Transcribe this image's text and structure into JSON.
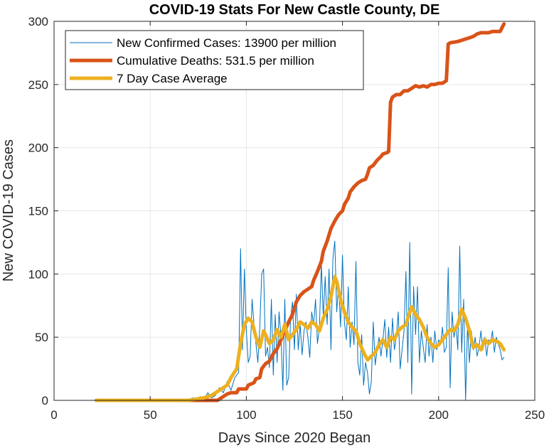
{
  "chart_data": {
    "type": "line",
    "title": "COVID-19 Stats For New Castle County, DE",
    "xlabel": "Days Since 2020 Began",
    "ylabel": "New COVID-19 Cases",
    "xlim": [
      0,
      250
    ],
    "ylim": [
      0,
      300
    ],
    "xticks": [
      0,
      50,
      100,
      150,
      200,
      250
    ],
    "yticks": [
      0,
      50,
      100,
      150,
      200,
      250,
      300
    ],
    "grid": true,
    "legend_position": "top-left",
    "series": [
      {
        "name": "New Confirmed Cases: 13900 per million",
        "color": "#0072BD",
        "style": "thin",
        "points": [
          [
            22,
            0
          ],
          [
            30,
            0
          ],
          [
            40,
            0
          ],
          [
            50,
            0
          ],
          [
            60,
            0
          ],
          [
            70,
            0
          ],
          [
            72,
            2
          ],
          [
            74,
            0
          ],
          [
            76,
            3
          ],
          [
            78,
            1
          ],
          [
            80,
            6
          ],
          [
            82,
            2
          ],
          [
            84,
            4
          ],
          [
            86,
            10
          ],
          [
            88,
            6
          ],
          [
            90,
            15
          ],
          [
            92,
            8
          ],
          [
            94,
            18
          ],
          [
            96,
            22
          ],
          [
            97,
            120
          ],
          [
            98,
            40
          ],
          [
            99,
            104
          ],
          [
            100,
            55
          ],
          [
            101,
            30
          ],
          [
            102,
            35
          ],
          [
            103,
            80
          ],
          [
            104,
            60
          ],
          [
            105,
            45
          ],
          [
            106,
            30
          ],
          [
            107,
            58
          ],
          [
            108,
            100
          ],
          [
            109,
            104
          ],
          [
            110,
            35
          ],
          [
            111,
            42
          ],
          [
            112,
            26
          ],
          [
            113,
            80
          ],
          [
            114,
            20
          ],
          [
            115,
            68
          ],
          [
            116,
            30
          ],
          [
            117,
            70
          ],
          [
            118,
            50
          ],
          [
            119,
            8
          ],
          [
            120,
            80
          ],
          [
            121,
            12
          ],
          [
            122,
            18
          ],
          [
            123,
            65
          ],
          [
            124,
            78
          ],
          [
            125,
            40
          ],
          [
            126,
            84
          ],
          [
            127,
            40
          ],
          [
            128,
            60
          ],
          [
            129,
            36
          ],
          [
            130,
            55
          ],
          [
            131,
            62
          ],
          [
            132,
            50
          ],
          [
            133,
            34
          ],
          [
            134,
            70
          ],
          [
            135,
            60
          ],
          [
            136,
            80
          ],
          [
            137,
            45
          ],
          [
            138,
            58
          ],
          [
            139,
            108
          ],
          [
            140,
            66
          ],
          [
            141,
            98
          ],
          [
            142,
            60
          ],
          [
            143,
            104
          ],
          [
            144,
            40
          ],
          [
            145,
            112
          ],
          [
            146,
            126
          ],
          [
            147,
            70
          ],
          [
            148,
            92
          ],
          [
            149,
            58
          ],
          [
            150,
            115
          ],
          [
            151,
            62
          ],
          [
            152,
            48
          ],
          [
            153,
            90
          ],
          [
            154,
            42
          ],
          [
            155,
            62
          ],
          [
            156,
            44
          ],
          [
            157,
            110
          ],
          [
            158,
            30
          ],
          [
            159,
            20
          ],
          [
            160,
            52
          ],
          [
            161,
            12
          ],
          [
            162,
            30
          ],
          [
            163,
            22
          ],
          [
            164,
            5
          ],
          [
            165,
            15
          ],
          [
            166,
            62
          ],
          [
            167,
            28
          ],
          [
            168,
            40
          ],
          [
            169,
            50
          ],
          [
            170,
            35
          ],
          [
            171,
            48
          ],
          [
            172,
            64
          ],
          [
            173,
            34
          ],
          [
            174,
            58
          ],
          [
            175,
            30
          ],
          [
            176,
            65
          ],
          [
            177,
            40
          ],
          [
            178,
            50
          ],
          [
            179,
            70
          ],
          [
            180,
            25
          ],
          [
            181,
            40
          ],
          [
            182,
            55
          ],
          [
            183,
            102
          ],
          [
            184,
            30
          ],
          [
            185,
            125
          ],
          [
            186,
            5
          ],
          [
            187,
            90
          ],
          [
            188,
            52
          ],
          [
            189,
            90
          ],
          [
            190,
            30
          ],
          [
            191,
            55
          ],
          [
            192,
            42
          ],
          [
            193,
            30
          ],
          [
            194,
            60
          ],
          [
            195,
            35
          ],
          [
            196,
            50
          ],
          [
            197,
            30
          ],
          [
            198,
            55
          ],
          [
            199,
            40
          ],
          [
            200,
            48
          ],
          [
            201,
            44
          ],
          [
            202,
            58
          ],
          [
            203,
            38
          ],
          [
            204,
            42
          ],
          [
            205,
            105
          ],
          [
            206,
            10
          ],
          [
            207,
            70
          ],
          [
            208,
            50
          ],
          [
            209,
            60
          ],
          [
            210,
            40
          ],
          [
            211,
            122
          ],
          [
            212,
            38
          ],
          [
            213,
            80
          ],
          [
            214,
            0
          ],
          [
            215,
            60
          ],
          [
            216,
            30
          ],
          [
            217,
            55
          ],
          [
            218,
            40
          ],
          [
            219,
            50
          ],
          [
            220,
            35
          ],
          [
            221,
            42
          ],
          [
            222,
            55
          ],
          [
            223,
            40
          ],
          [
            224,
            50
          ],
          [
            225,
            35
          ],
          [
            226,
            48
          ],
          [
            227,
            45
          ],
          [
            228,
            55
          ],
          [
            229,
            38
          ],
          [
            230,
            50
          ],
          [
            231,
            45
          ],
          [
            232,
            40
          ],
          [
            233,
            32
          ],
          [
            234,
            34
          ]
        ]
      },
      {
        "name": "Cumulative Deaths: 531.5 per million",
        "color": "#D95319",
        "style": "thick",
        "points": [
          [
            22,
            0
          ],
          [
            85,
            0
          ],
          [
            88,
            3
          ],
          [
            90,
            5
          ],
          [
            92,
            6
          ],
          [
            95,
            6
          ],
          [
            96,
            9
          ],
          [
            100,
            9
          ],
          [
            101,
            12
          ],
          [
            104,
            14
          ],
          [
            105,
            17
          ],
          [
            107,
            18
          ],
          [
            108,
            25
          ],
          [
            110,
            29
          ],
          [
            112,
            31
          ],
          [
            114,
            37
          ],
          [
            116,
            41
          ],
          [
            118,
            48
          ],
          [
            120,
            55
          ],
          [
            122,
            62
          ],
          [
            124,
            68
          ],
          [
            126,
            78
          ],
          [
            128,
            83
          ],
          [
            130,
            86
          ],
          [
            132,
            88
          ],
          [
            134,
            90
          ],
          [
            135,
            95
          ],
          [
            137,
            102
          ],
          [
            139,
            110
          ],
          [
            140,
            118
          ],
          [
            142,
            126
          ],
          [
            144,
            136
          ],
          [
            146,
            142
          ],
          [
            148,
            147
          ],
          [
            150,
            150
          ],
          [
            151,
            155
          ],
          [
            153,
            160
          ],
          [
            154,
            165
          ],
          [
            156,
            169
          ],
          [
            158,
            172
          ],
          [
            160,
            174
          ],
          [
            162,
            175
          ],
          [
            163,
            179
          ],
          [
            164,
            184
          ],
          [
            166,
            186
          ],
          [
            168,
            190
          ],
          [
            170,
            193
          ],
          [
            171,
            195
          ],
          [
            173,
            196
          ],
          [
            174,
            197
          ],
          [
            175,
            236
          ],
          [
            176,
            240
          ],
          [
            178,
            242
          ],
          [
            180,
            242
          ],
          [
            182,
            245
          ],
          [
            184,
            245
          ],
          [
            186,
            247
          ],
          [
            188,
            249
          ],
          [
            190,
            248
          ],
          [
            192,
            249
          ],
          [
            194,
            248
          ],
          [
            196,
            250
          ],
          [
            198,
            250
          ],
          [
            200,
            251
          ],
          [
            202,
            251
          ],
          [
            204,
            253
          ],
          [
            205,
            282
          ],
          [
            206,
            283
          ],
          [
            210,
            284
          ],
          [
            214,
            286
          ],
          [
            216,
            287
          ],
          [
            218,
            288
          ],
          [
            220,
            290
          ],
          [
            222,
            291
          ],
          [
            226,
            291
          ],
          [
            228,
            292
          ],
          [
            230,
            292
          ],
          [
            232,
            292
          ],
          [
            234,
            298
          ]
        ]
      },
      {
        "name": "7 Day Case Average",
        "color": "#EDB120",
        "style": "thick",
        "points": [
          [
            22,
            0
          ],
          [
            70,
            0
          ],
          [
            74,
            1
          ],
          [
            78,
            2
          ],
          [
            82,
            4
          ],
          [
            86,
            8
          ],
          [
            90,
            12
          ],
          [
            92,
            18
          ],
          [
            95,
            25
          ],
          [
            97,
            45
          ],
          [
            99,
            60
          ],
          [
            101,
            65
          ],
          [
            103,
            62
          ],
          [
            105,
            50
          ],
          [
            107,
            42
          ],
          [
            109,
            55
          ],
          [
            110,
            52
          ],
          [
            112,
            45
          ],
          [
            114,
            48
          ],
          [
            116,
            56
          ],
          [
            118,
            50
          ],
          [
            120,
            60
          ],
          [
            122,
            48
          ],
          [
            124,
            52
          ],
          [
            126,
            56
          ],
          [
            128,
            62
          ],
          [
            130,
            60
          ],
          [
            132,
            57
          ],
          [
            134,
            62
          ],
          [
            136,
            60
          ],
          [
            138,
            55
          ],
          [
            140,
            65
          ],
          [
            142,
            72
          ],
          [
            144,
            82
          ],
          [
            146,
            98
          ],
          [
            147,
            94
          ],
          [
            149,
            80
          ],
          [
            151,
            70
          ],
          [
            153,
            62
          ],
          [
            155,
            58
          ],
          [
            157,
            55
          ],
          [
            159,
            45
          ],
          [
            161,
            38
          ],
          [
            163,
            32
          ],
          [
            165,
            35
          ],
          [
            167,
            38
          ],
          [
            169,
            44
          ],
          [
            171,
            48
          ],
          [
            173,
            42
          ],
          [
            175,
            50
          ],
          [
            177,
            48
          ],
          [
            179,
            55
          ],
          [
            181,
            58
          ],
          [
            183,
            60
          ],
          [
            184,
            65
          ],
          [
            186,
            74
          ],
          [
            188,
            68
          ],
          [
            190,
            64
          ],
          [
            192,
            58
          ],
          [
            194,
            50
          ],
          [
            196,
            45
          ],
          [
            198,
            42
          ],
          [
            200,
            44
          ],
          [
            202,
            48
          ],
          [
            204,
            52
          ],
          [
            206,
            56
          ],
          [
            208,
            55
          ],
          [
            210,
            60
          ],
          [
            212,
            72
          ],
          [
            214,
            65
          ],
          [
            216,
            55
          ],
          [
            218,
            42
          ],
          [
            220,
            44
          ],
          [
            222,
            40
          ],
          [
            224,
            48
          ],
          [
            226,
            45
          ],
          [
            228,
            48
          ],
          [
            230,
            47
          ],
          [
            232,
            45
          ],
          [
            234,
            40
          ]
        ]
      }
    ]
  }
}
